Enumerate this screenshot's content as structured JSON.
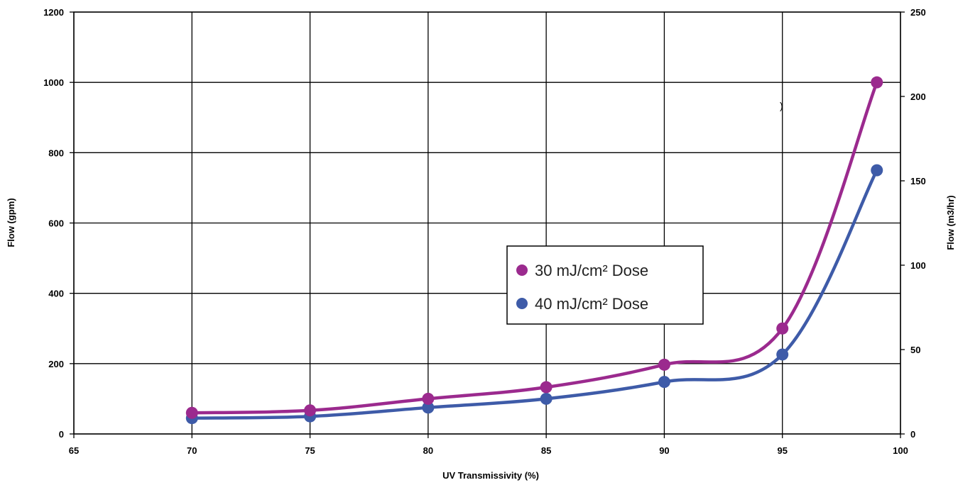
{
  "chart_data": {
    "type": "line",
    "title": "",
    "xlabel": "UV Transmissivity (%)",
    "ylabel": "Flow (gpm)",
    "y2label": "Flow (m3/hr)",
    "xlim": [
      65,
      100
    ],
    "ylim": [
      0,
      1200
    ],
    "y2lim": [
      0,
      250
    ],
    "xticks": [
      "65",
      "70",
      "75",
      "80",
      "85",
      "90",
      "95",
      "100"
    ],
    "yticks": [
      "0",
      "200",
      "400",
      "600",
      "800",
      "1000",
      "1200"
    ],
    "y2ticks": [
      "0",
      "50",
      "100",
      "150",
      "200",
      "250"
    ],
    "grid": true,
    "legend_position": "center-right",
    "stray_mark": ")",
    "series": [
      {
        "name": "30 mJ/cm² Dose",
        "color": "#9b2a8e",
        "x": [
          70,
          75,
          80,
          85,
          90,
          95,
          99
        ],
        "y": [
          60,
          67,
          100,
          133,
          197,
          300,
          1000
        ]
      },
      {
        "name": "40 mJ/cm² Dose",
        "color": "#3e5ba8",
        "x": [
          70,
          75,
          80,
          85,
          90,
          95,
          99
        ],
        "y": [
          45,
          50,
          75,
          100,
          148,
          226,
          750
        ]
      }
    ]
  }
}
